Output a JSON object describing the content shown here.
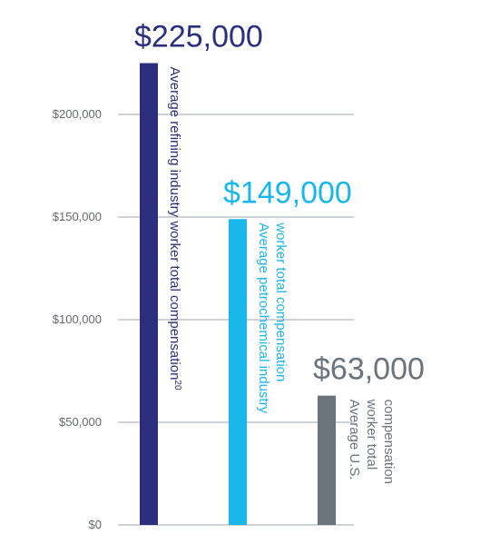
{
  "chart_data": {
    "type": "bar",
    "title": "",
    "xlabel": "",
    "ylabel": "",
    "ylim": [
      0,
      225000
    ],
    "grid": true,
    "y_ticks": [
      {
        "value": 0,
        "label": "$0"
      },
      {
        "value": 50000,
        "label": "$50,000"
      },
      {
        "value": 100000,
        "label": "$100,000"
      },
      {
        "value": 150000,
        "label": "$150,000"
      },
      {
        "value": 200000,
        "label": "$200,000"
      }
    ],
    "bars": [
      {
        "value": 225000,
        "value_label": "$225,000",
        "caption_lines": [
          "Average refining industry worker total compensation"
        ],
        "footnote": "20",
        "color": "#2b2f7e",
        "label_color": "#2b2f7e"
      },
      {
        "value": 149000,
        "value_label": "$149,000",
        "caption_lines": [
          "Average petrochemical industry",
          "worker total compensation"
        ],
        "footnote": "",
        "color": "#1ab7ea",
        "label_color": "#1ab7ea"
      },
      {
        "value": 63000,
        "value_label": "$63,000",
        "caption_lines": [
          "Average U.S.",
          "worker total",
          "compensation"
        ],
        "footnote": "",
        "color": "#6b737b",
        "label_color": "#6b737b"
      }
    ]
  }
}
